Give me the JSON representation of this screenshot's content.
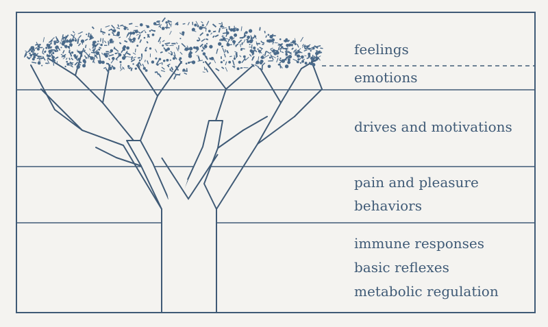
{
  "colors": {
    "ink": "#3f5a76",
    "paper": "#f4f3f0",
    "foliage": "#4a6a8a"
  },
  "labels": {
    "feelings": "feelings",
    "emotions": "emotions",
    "drives": "drives and motivations",
    "pain_pleasure": "pain and pleasure",
    "behaviors": "behaviors",
    "immune": "immune responses",
    "reflexes": "basic reflexes",
    "metabolic": "metabolic regulation"
  }
}
